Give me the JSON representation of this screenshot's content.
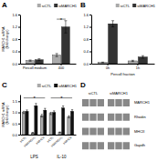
{
  "chart_data": [
    {
      "type": "bar",
      "title": "A",
      "categories": [
        "Percoll medium",
        "400"
      ],
      "series": [
        {
          "name": "siCTL",
          "color": "#aaaaaa",
          "values": [
            0.1,
            0.28
          ],
          "errors": [
            0.02,
            0.05
          ]
        },
        {
          "name": "siMARCH1",
          "color": "#333333",
          "values": [
            0.13,
            1.2
          ],
          "errors": [
            0.03,
            0.2
          ]
        }
      ],
      "ylabel": "MARCH1 mRNA\n(fold change)",
      "ylim": [
        0,
        1.6
      ],
      "yticks": [
        {
          "value": 0,
          "label": "0.0"
        },
        0.4,
        0.8,
        1.2,
        1.6
      ],
      "legend": "upper right",
      "annotations": [
        {
          "text": "*",
          "x": "400",
          "y": 1.45
        }
      ]
    },
    {
      "type": "bar",
      "title": "B",
      "categories": [
        "0h",
        "1h"
      ],
      "series": [
        {
          "name": "siCTL",
          "color": "#aaaaaa",
          "values": [
            0.04,
            0.09
          ],
          "errors": [
            0.01,
            0.02
          ]
        },
        {
          "name": "siMARCH1",
          "color": "#333333",
          "values": [
            1.3,
            0.22
          ],
          "errors": [
            0.1,
            0.04
          ]
        }
      ],
      "xlabel": "Percoll fraction",
      "ylim": [
        0,
        1.6
      ],
      "yticks": [
        {
          "value": 0,
          "label": "0.0"
        },
        0.4,
        0.8,
        1.2,
        1.6
      ],
      "legend": "upper right"
    },
    {
      "type": "bar",
      "title": "C",
      "categories": [
        "siCTL",
        "siMARCH1",
        "siMHCII",
        "siCTL",
        "siMARCH1",
        "siMHCII"
      ],
      "x_groups": [
        "LPS",
        "IL-10"
      ],
      "series": [
        {
          "name": "siCTL",
          "color": "#aaaaaa",
          "values": [
            1.0,
            0.08,
            0.85,
            0.95,
            0.1,
            0.8
          ],
          "errors": [
            0.05,
            0.02,
            0.06,
            0.05,
            0.02,
            0.05
          ]
        },
        {
          "name": "siMARCH1",
          "color": "#111111",
          "values": [
            1.05,
            1.3,
            1.1,
            1.0,
            1.2,
            1.05
          ],
          "errors": [
            0.06,
            0.1,
            0.08,
            0.07,
            0.09,
            0.07
          ]
        }
      ],
      "ylabel": "MARCH1 mRNA\n(fold change)",
      "ylim": [
        0,
        1.8
      ],
      "yticks": [
        {
          "value": 0,
          "label": "0.0"
        },
        0.5,
        {
          "value": 1,
          "label": "1.0"
        },
        1.5
      ],
      "legend": "upper right",
      "annotations": [
        {
          "text": "*",
          "x": "LPS",
          "y": 1.65
        },
        {
          "text": "*",
          "x": "IL-10",
          "y": 1.65
        }
      ]
    },
    {
      "type": "blot",
      "title": "D",
      "categories": [
        "siCTL",
        "siMARCH1"
      ],
      "annotations": [
        "MARCH1",
        "Rhodin",
        "MHCII",
        "Gapdh"
      ]
    }
  ]
}
